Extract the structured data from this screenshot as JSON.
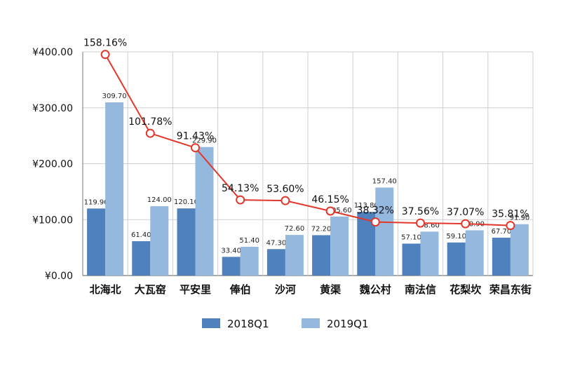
{
  "chart_data": {
    "type": "bar",
    "categories": [
      "北海北",
      "大瓦窑",
      "平安里",
      "俸伯",
      "沙河",
      "黄渠",
      "魏公村",
      "南法信",
      "花梨坎",
      "荣昌东街"
    ],
    "series": [
      {
        "name": "2018Q1",
        "values": [
          119.9,
          61.4,
          120.1,
          33.4,
          47.3,
          72.2,
          113.8,
          57.1,
          59.1,
          67.7
        ],
        "labels": [
          "119.90",
          "61.40",
          "120.10",
          "33.40",
          "47.30",
          "72.20",
          "113.80",
          "57.10",
          "59.10",
          "67.70"
        ],
        "color": "#4f81bd"
      },
      {
        "name": "2019Q1",
        "values": [
          309.7,
          124.0,
          229.9,
          51.4,
          72.6,
          105.6,
          157.4,
          78.6,
          80.9,
          91.9
        ],
        "labels": [
          "309.70",
          "124.00",
          "229.90",
          "51.40",
          "72.60",
          "105.60",
          "157.40",
          "78.60",
          "80.90",
          "91.90"
        ],
        "color": "#95b8de"
      }
    ],
    "growth": {
      "values": [
        158.16,
        101.78,
        91.43,
        54.13,
        53.6,
        46.15,
        38.32,
        37.56,
        37.07,
        35.81
      ],
      "labels": [
        "158.16%",
        "101.78%",
        "91.43%",
        "54.13%",
        "53.60%",
        "46.15%",
        "38.32%",
        "37.56%",
        "37.07%",
        "35.81%"
      ],
      "line_color": "#e2372b"
    },
    "yticks": [
      "¥0.00",
      "¥100.00",
      "¥200.00",
      "¥300.00",
      "¥400.00"
    ],
    "ylim": [
      0,
      400
    ],
    "grid": true,
    "legend_position": "bottom"
  }
}
